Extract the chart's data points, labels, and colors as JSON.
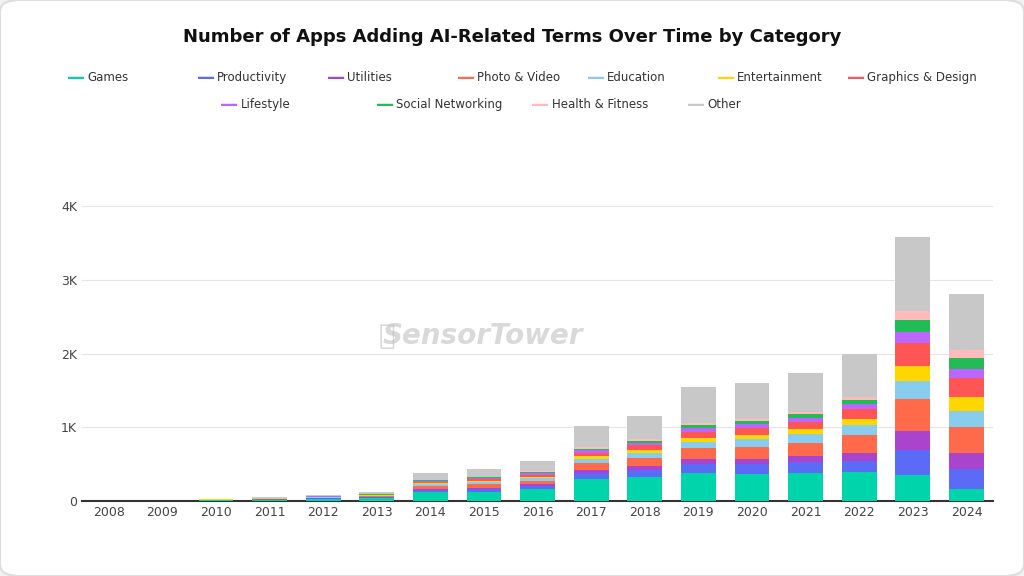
{
  "title": "Number of Apps Adding AI-Related Terms Over Time by Category",
  "years": [
    2008,
    2009,
    2010,
    2011,
    2012,
    2013,
    2014,
    2015,
    2016,
    2017,
    2018,
    2019,
    2020,
    2021,
    2022,
    2023,
    2024
  ],
  "categories": [
    "Games",
    "Productivity",
    "Utilities",
    "Photo & Video",
    "Education",
    "Entertainment",
    "Graphics & Design",
    "Lifestyle",
    "Social Networking",
    "Health & Fitness",
    "Other"
  ],
  "colors": [
    "#00D4AA",
    "#5B6BF5",
    "#AA44CC",
    "#FF6B4A",
    "#88CCEE",
    "#FFD700",
    "#FF5555",
    "#BB66FF",
    "#22BB55",
    "#FFBBBB",
    "#C8C8C8"
  ],
  "data": {
    "Games": [
      2,
      3,
      15,
      20,
      30,
      40,
      120,
      130,
      160,
      300,
      330,
      380,
      370,
      380,
      390,
      350,
      160
    ],
    "Productivity": [
      1,
      1,
      2,
      5,
      8,
      10,
      30,
      35,
      45,
      80,
      95,
      120,
      130,
      145,
      160,
      350,
      280
    ],
    "Utilities": [
      0,
      0,
      1,
      3,
      5,
      7,
      15,
      18,
      22,
      45,
      50,
      70,
      75,
      85,
      105,
      250,
      210
    ],
    "Photo & Video": [
      0,
      0,
      2,
      3,
      6,
      8,
      40,
      45,
      52,
      90,
      105,
      145,
      165,
      180,
      240,
      430,
      360
    ],
    "Education": [
      0,
      0,
      1,
      3,
      5,
      8,
      22,
      27,
      33,
      60,
      72,
      90,
      100,
      115,
      135,
      250,
      210
    ],
    "Entertainment": [
      0,
      0,
      1,
      2,
      3,
      5,
      15,
      18,
      22,
      38,
      45,
      58,
      62,
      70,
      80,
      200,
      190
    ],
    "Graphics & Design": [
      0,
      0,
      1,
      2,
      3,
      5,
      18,
      22,
      27,
      45,
      58,
      78,
      88,
      95,
      135,
      320,
      260
    ],
    "Lifestyle": [
      0,
      0,
      0,
      2,
      3,
      5,
      12,
      15,
      18,
      30,
      38,
      50,
      55,
      62,
      75,
      150,
      130
    ],
    "Social Networking": [
      0,
      0,
      0,
      1,
      2,
      3,
      9,
      12,
      15,
      22,
      26,
      36,
      40,
      44,
      50,
      160,
      145
    ],
    "Health & Fitness": [
      0,
      0,
      0,
      1,
      2,
      3,
      8,
      9,
      12,
      18,
      22,
      28,
      32,
      36,
      42,
      120,
      110
    ],
    "Other": [
      2,
      2,
      5,
      8,
      15,
      25,
      95,
      110,
      135,
      290,
      320,
      490,
      480,
      530,
      580,
      1000,
      750
    ]
  },
  "ylim": [
    0,
    4300
  ],
  "yticks": [
    0,
    1000,
    2000,
    3000,
    4000
  ],
  "ytick_labels": [
    "0",
    "1K",
    "2K",
    "3K",
    "4K"
  ],
  "background_color": "#FFFFFF",
  "figure_background": "#F2F2F2",
  "grid_color": "#E5E5E5",
  "watermark_text": "SensorTower",
  "legend_row1": [
    [
      "Games",
      "#00D4AA"
    ],
    [
      "Productivity",
      "#5B6BF5"
    ],
    [
      "Utilities",
      "#AA44CC"
    ],
    [
      "Photo & Video",
      "#FF6B4A"
    ],
    [
      "Education",
      "#88CCEE"
    ],
    [
      "Entertainment",
      "#FFD700"
    ],
    [
      "Graphics & Design",
      "#FF5555"
    ]
  ],
  "legend_row2": [
    [
      "Lifestyle",
      "#BB66FF"
    ],
    [
      "Social Networking",
      "#22BB55"
    ],
    [
      "Health & Fitness",
      "#FFBBBB"
    ],
    [
      "Other",
      "#C8C8C8"
    ]
  ]
}
